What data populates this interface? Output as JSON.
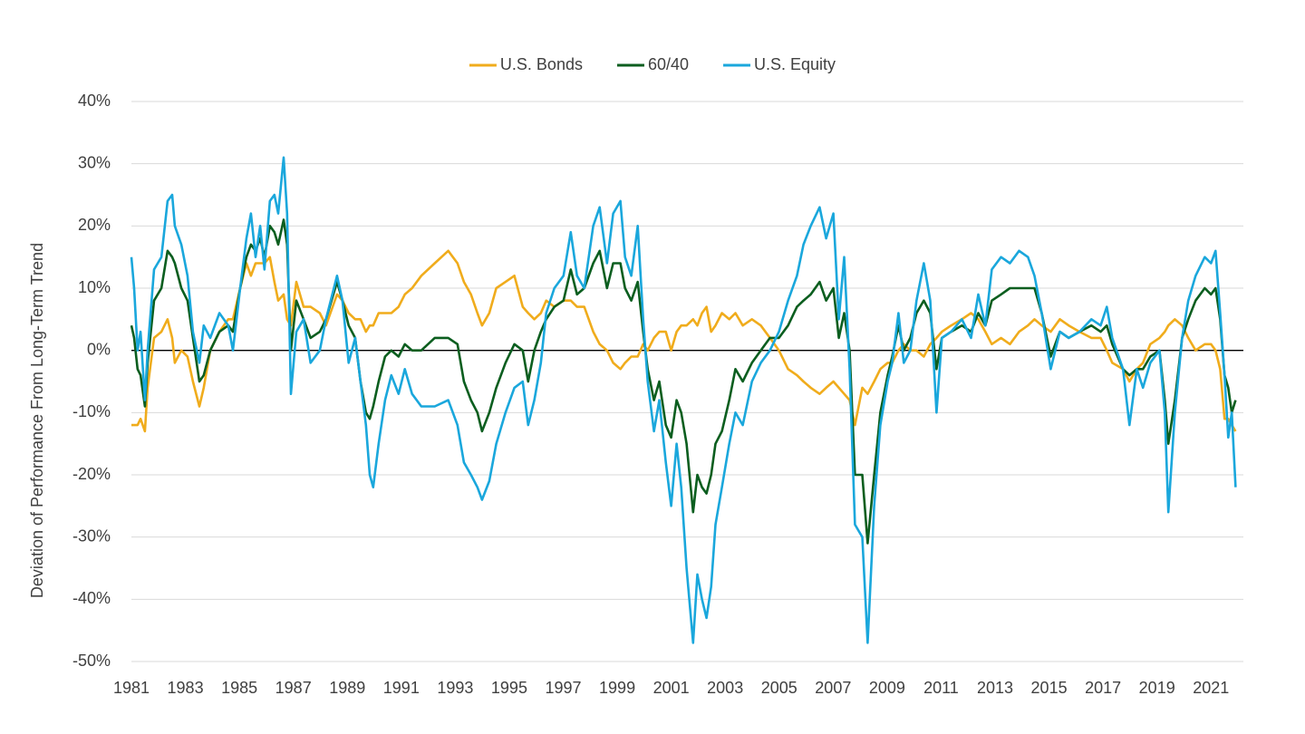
{
  "chart_data": {
    "type": "line",
    "ylabel": "Deviation of Performance From Long-Term Trend",
    "legend": "top",
    "grid": true,
    "zero_line": true,
    "xlim": [
      1981,
      2022.2
    ],
    "xticks": [
      1981,
      1983,
      1985,
      1987,
      1989,
      1991,
      1993,
      1995,
      1997,
      1999,
      2001,
      2003,
      2005,
      2007,
      2009,
      2011,
      2013,
      2015,
      2017,
      2019,
      2021
    ],
    "ylim": [
      -50,
      40
    ],
    "yticks": [
      {
        "value": -50,
        "label": "-50%"
      },
      {
        "value": -40,
        "label": "-40%"
      },
      {
        "value": -30,
        "label": "-30%"
      },
      {
        "value": -20,
        "label": "-20%"
      },
      {
        "value": -10,
        "label": "-10%"
      },
      {
        "value": 0,
        "label": "0%"
      },
      {
        "value": 10,
        "label": "10%"
      },
      {
        "value": 20,
        "label": "20%"
      },
      {
        "value": 30,
        "label": "30%"
      },
      {
        "value": 40,
        "label": "40%"
      }
    ],
    "x": [
      1981.0,
      1981.1,
      1981.23,
      1981.34,
      1981.5,
      1981.6,
      1981.84,
      1982.11,
      1982.34,
      1982.51,
      1982.61,
      1982.85,
      1983.08,
      1983.28,
      1983.52,
      1983.68,
      1983.92,
      1984.26,
      1984.59,
      1984.76,
      1985.03,
      1985.26,
      1985.43,
      1985.6,
      1985.77,
      1985.93,
      1986.13,
      1986.3,
      1986.44,
      1986.64,
      1986.77,
      1986.91,
      1987.11,
      1987.38,
      1987.64,
      1987.98,
      1988.21,
      1988.62,
      1988.82,
      1989.05,
      1989.29,
      1989.49,
      1989.69,
      1989.83,
      1989.96,
      1990.16,
      1990.4,
      1990.63,
      1990.9,
      1991.13,
      1991.4,
      1991.74,
      1992.24,
      1992.74,
      1993.08,
      1993.32,
      1993.58,
      1993.82,
      1993.99,
      1994.26,
      1994.52,
      1994.86,
      1995.19,
      1995.5,
      1995.7,
      1995.93,
      1996.17,
      1996.37,
      1996.67,
      1997.01,
      1997.28,
      1997.51,
      1997.78,
      1998.11,
      1998.35,
      1998.62,
      1998.85,
      1999.12,
      1999.29,
      1999.52,
      1999.76,
      1999.96,
      2000.13,
      2000.36,
      2000.56,
      2000.8,
      2001.0,
      2001.2,
      2001.37,
      2001.57,
      2001.81,
      2001.97,
      2002.14,
      2002.31,
      2002.48,
      2002.64,
      2002.88,
      2003.15,
      2003.38,
      2003.65,
      2003.99,
      2004.32,
      2004.66,
      2004.99,
      2005.33,
      2005.66,
      2005.9,
      2006.17,
      2006.5,
      2006.74,
      2007.01,
      2007.21,
      2007.41,
      2007.61,
      2007.81,
      2008.08,
      2008.28,
      2008.52,
      2008.75,
      2009.02,
      2009.19,
      2009.42,
      2009.62,
      2009.86,
      2010.09,
      2010.36,
      2010.6,
      2010.83,
      2011.03,
      2011.37,
      2011.77,
      2012.11,
      2012.38,
      2012.64,
      2012.88,
      2013.22,
      2013.55,
      2013.89,
      2014.22,
      2014.46,
      2014.73,
      2015.06,
      2015.4,
      2015.73,
      2016.13,
      2016.57,
      2016.91,
      2017.14,
      2017.34,
      2017.74,
      2017.98,
      2018.25,
      2018.48,
      2018.75,
      2019.09,
      2019.29,
      2019.42,
      2019.66,
      2019.93,
      2020.16,
      2020.43,
      2020.77,
      2021.0,
      2021.17,
      2021.34,
      2021.5,
      2021.64,
      2021.77,
      2021.91
    ],
    "series": [
      {
        "name": "U.S. Bonds",
        "color": "#f0ac1c",
        "values": [
          -12,
          -12,
          -12,
          -11,
          -13,
          -6,
          2,
          3,
          5,
          2,
          -2,
          0,
          -1,
          -5,
          -9,
          -6,
          0,
          3,
          5,
          5,
          10,
          14,
          12,
          14,
          14,
          14,
          15,
          11,
          8,
          9,
          5,
          4,
          11,
          7,
          7,
          6,
          4,
          9,
          8,
          6,
          5,
          5,
          3,
          4,
          4,
          6,
          6,
          6,
          7,
          9,
          10,
          12,
          14,
          16,
          14,
          11,
          9,
          6,
          4,
          6,
          10,
          11,
          12,
          7,
          6,
          5,
          6,
          8,
          7,
          8,
          8,
          7,
          7,
          3,
          1,
          0,
          -2,
          -3,
          -2,
          -1,
          -1,
          1,
          0,
          2,
          3,
          3,
          0,
          3,
          4,
          4,
          5,
          4,
          6,
          7,
          3,
          4,
          6,
          5,
          6,
          4,
          5,
          4,
          2,
          0,
          -3,
          -4,
          -5,
          -6,
          -7,
          -6,
          -5,
          -6,
          -7,
          -8,
          -12,
          -6,
          -7,
          -5,
          -3,
          -2,
          -2,
          0,
          1,
          0,
          0,
          -1,
          1,
          2,
          3,
          4,
          5,
          6,
          5,
          3,
          1,
          2,
          1,
          3,
          4,
          5,
          4,
          3,
          5,
          4,
          3,
          2,
          2,
          0,
          -2,
          -3,
          -5,
          -3,
          -2,
          1,
          2,
          3,
          4,
          5,
          4,
          2,
          0,
          1,
          1,
          0,
          -3,
          -11,
          -11,
          -12,
          -13
        ]
      },
      {
        "name": "60/40",
        "color": "#0b5e1f",
        "values": [
          4,
          2,
          -3,
          -4,
          -9,
          -2,
          8,
          10,
          16,
          15,
          14,
          10,
          8,
          2,
          -5,
          -4,
          0,
          3,
          4,
          3,
          10,
          15,
          17,
          16,
          18,
          15,
          20,
          19,
          17,
          21,
          17,
          0,
          8,
          5,
          2,
          3,
          5,
          11,
          8,
          4,
          2,
          -5,
          -10,
          -11,
          -9,
          -5,
          -1,
          0,
          -1,
          1,
          0,
          0,
          2,
          2,
          1,
          -5,
          -8,
          -10,
          -13,
          -10,
          -6,
          -2,
          1,
          0,
          -5,
          0,
          3,
          5,
          7,
          8,
          13,
          9,
          10,
          14,
          16,
          10,
          14,
          14,
          10,
          8,
          11,
          3,
          -3,
          -8,
          -5,
          -12,
          -14,
          -8,
          -10,
          -15,
          -26,
          -20,
          -22,
          -23,
          -20,
          -15,
          -13,
          -8,
          -3,
          -5,
          -2,
          0,
          2,
          2,
          4,
          7,
          8,
          9,
          11,
          8,
          10,
          2,
          6,
          0,
          -20,
          -20,
          -31,
          -20,
          -10,
          -4,
          -1,
          4,
          0,
          2,
          6,
          8,
          6,
          -3,
          2,
          3,
          4,
          3,
          6,
          4,
          8,
          9,
          10,
          10,
          10,
          10,
          6,
          -1,
          3,
          2,
          3,
          4,
          3,
          4,
          1,
          -3,
          -4,
          -3,
          -3,
          -1,
          0,
          -8,
          -15,
          -8,
          2,
          5,
          8,
          10,
          9,
          10,
          5,
          -4,
          -6,
          -10,
          -8
        ]
      },
      {
        "name": "U.S. Equity",
        "color": "#1aa7dc",
        "values": [
          15,
          10,
          0,
          3,
          -8,
          0,
          13,
          15,
          24,
          25,
          20,
          17,
          12,
          3,
          -2,
          4,
          2,
          6,
          4,
          0,
          10,
          18,
          22,
          15,
          20,
          13,
          24,
          25,
          22,
          31,
          22,
          -7,
          3,
          5,
          -2,
          0,
          5,
          12,
          8,
          -2,
          2,
          -5,
          -12,
          -20,
          -22,
          -15,
          -8,
          -4,
          -7,
          -3,
          -7,
          -9,
          -9,
          -8,
          -12,
          -18,
          -20,
          -22,
          -24,
          -21,
          -15,
          -10,
          -6,
          -5,
          -12,
          -8,
          -2,
          6,
          10,
          12,
          19,
          12,
          10,
          20,
          23,
          14,
          22,
          24,
          15,
          12,
          20,
          5,
          -5,
          -13,
          -8,
          -18,
          -25,
          -15,
          -22,
          -35,
          -47,
          -36,
          -40,
          -43,
          -38,
          -28,
          -22,
          -15,
          -10,
          -12,
          -5,
          -2,
          0,
          3,
          8,
          12,
          17,
          20,
          23,
          18,
          22,
          5,
          15,
          -3,
          -28,
          -30,
          -47,
          -25,
          -12,
          -5,
          -2,
          6,
          -2,
          0,
          8,
          14,
          8,
          -10,
          2,
          3,
          5,
          2,
          9,
          4,
          13,
          15,
          14,
          16,
          15,
          12,
          6,
          -3,
          3,
          2,
          3,
          5,
          4,
          7,
          2,
          -3,
          -12,
          -3,
          -6,
          -2,
          0,
          -10,
          -26,
          -10,
          2,
          8,
          12,
          15,
          14,
          16,
          6,
          -4,
          -14,
          -10,
          -22
        ]
      }
    ]
  }
}
